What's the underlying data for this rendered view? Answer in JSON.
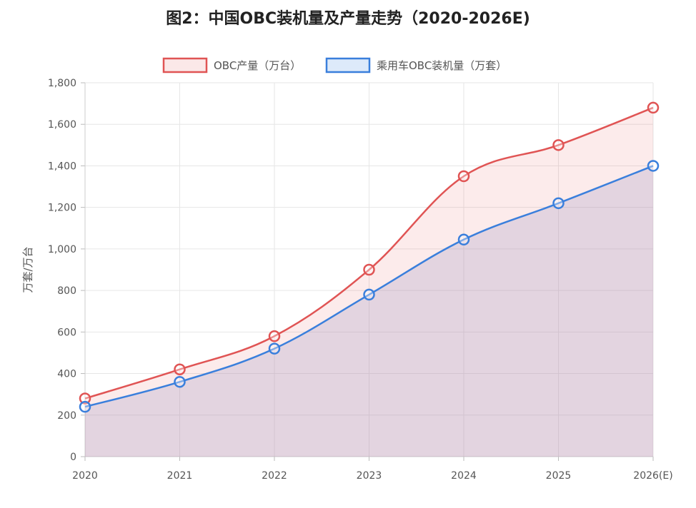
{
  "title": "图2：中国OBC装机量及产量走势（2020-2026E)",
  "colors": {
    "production_line": "#e05454",
    "production_fill": "rgba(228,100,100,0.13)",
    "installed_line": "#3a7fdc",
    "installed_fill": "rgba(170,160,200,0.30)",
    "grid": "#e6e6e6"
  },
  "chart_data": {
    "type": "area",
    "title": "图2：中国OBC装机量及产量走势（2020-2026E)",
    "categories": [
      "2020",
      "2021",
      "2022",
      "2023",
      "2024",
      "2025",
      "2026(E)"
    ],
    "xlabel": "",
    "ylabel": "万套/万台",
    "ylim": [
      0,
      1800
    ],
    "yticks": [
      0,
      200,
      400,
      600,
      800,
      1000,
      1200,
      1400,
      1600,
      1800
    ],
    "ytick_labels": [
      "0",
      "200",
      "400",
      "600",
      "800",
      "1,000",
      "1,200",
      "1,400",
      "1,600",
      "1,800"
    ],
    "grid": true,
    "legend_position": "top-center",
    "series": [
      {
        "name": "OBC产量（万台）",
        "values": [
          280,
          420,
          580,
          900,
          1350,
          1500,
          1680
        ]
      },
      {
        "name": "乘用车OBC装机量（万套）",
        "values": [
          240,
          360,
          520,
          780,
          1045,
          1220,
          1400
        ]
      }
    ]
  }
}
